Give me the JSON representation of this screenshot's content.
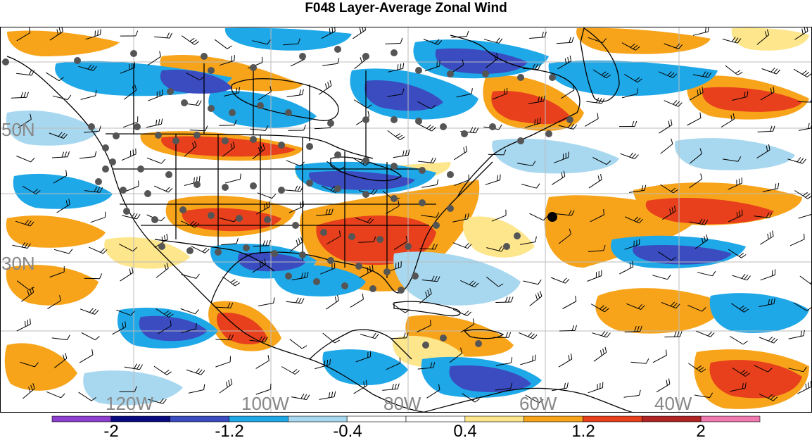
{
  "title": "F048 Layer-Average Zonal Wind",
  "map": {
    "lon_labels": [
      "120W",
      "100W",
      "80W",
      "60W",
      "40W"
    ],
    "lat_labels": [
      "50N",
      "30N"
    ],
    "colors": {
      "strong_pos": "#e8401c",
      "pos": "#f7a41b",
      "weak_pos": "#fde68c",
      "neutral": "#ffffff",
      "weak_neg": "#a8d8f0",
      "neg": "#1fa8e8",
      "strong_neg": "#3a4cc0",
      "coast": "#000000",
      "station": "#555555",
      "grid": "#bbbbbb",
      "label": "#888888"
    }
  },
  "colorbar": {
    "tick_labels": [
      "-2",
      "-1.2",
      "-0.4",
      "0.4",
      "1.2",
      "2"
    ],
    "segment_colors": [
      "#8e3fd0",
      "#0a0a80",
      "#3a4cc0",
      "#1fa8e8",
      "#a8d8f0",
      "#ffffff",
      "#ffffff",
      "#fde68c",
      "#f7a41b",
      "#e8401c",
      "#b02424",
      "#f07ab0"
    ]
  }
}
